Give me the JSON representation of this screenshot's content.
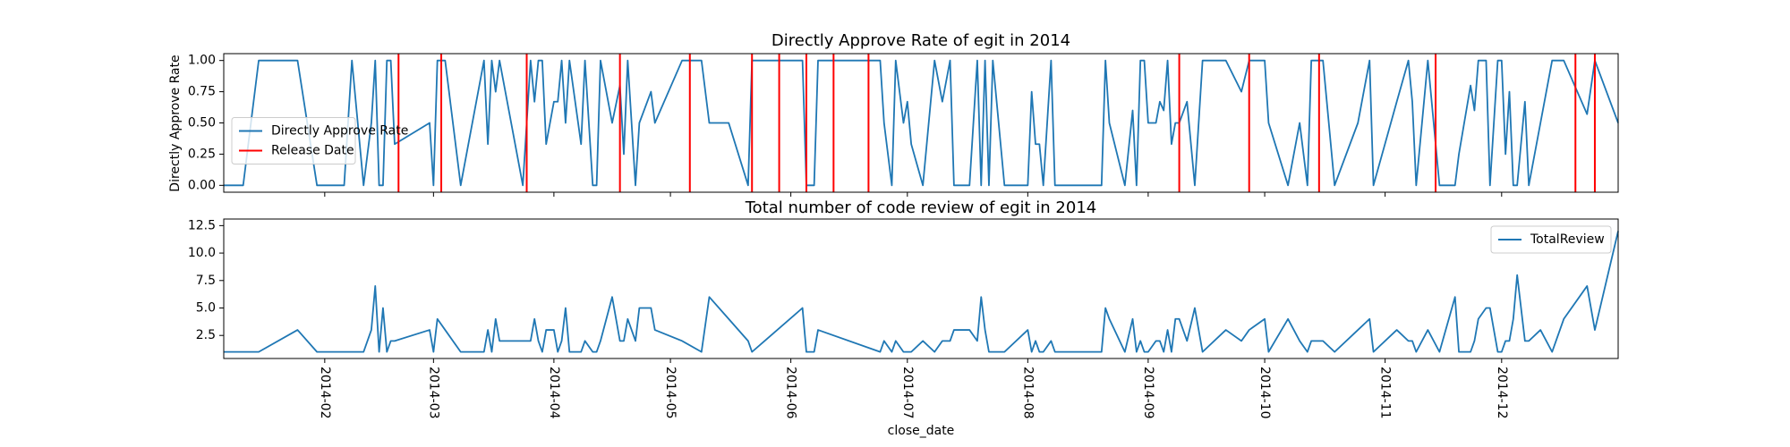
{
  "chart_data": [
    {
      "type": "line",
      "title": "Directly Approve Rate of egit in 2014",
      "ylabel": "Directly Approve Rate",
      "x": [
        5,
        10,
        14,
        24,
        29,
        36,
        38,
        41,
        43,
        44,
        45,
        46,
        47,
        48,
        49,
        58,
        59,
        60,
        62,
        66,
        72,
        73,
        74,
        75,
        76,
        82,
        84,
        85,
        86,
        87,
        88,
        90,
        91,
        92,
        93,
        94,
        97,
        98,
        100,
        101,
        102,
        105,
        107,
        108,
        109,
        111,
        112,
        115,
        116,
        123,
        128,
        130,
        135,
        140,
        141,
        154,
        155,
        157,
        158,
        174,
        175,
        177,
        178,
        180,
        181,
        182,
        185,
        188,
        190,
        192,
        193,
        197,
        199,
        200,
        201,
        202,
        203,
        206,
        212,
        213,
        214,
        215,
        216,
        218,
        219,
        231,
        232,
        233,
        237,
        239,
        240,
        241,
        242,
        243,
        245,
        246,
        247,
        248,
        249,
        250,
        251,
        253,
        255,
        257,
        263,
        267,
        269,
        273,
        274,
        279,
        282,
        284,
        285,
        288,
        291,
        297,
        300,
        301,
        307,
        310,
        311,
        312,
        315,
        318,
        322,
        323,
        326,
        327,
        328,
        330,
        331,
        333,
        334,
        335,
        336,
        337,
        338,
        340,
        341,
        344,
        347,
        350,
        356,
        358,
        364
      ],
      "series": [
        {
          "name": "Directly Approve Rate",
          "color": "#1f77b4",
          "values": [
            0,
            0,
            1,
            1,
            0,
            0,
            1,
            0,
            0.5,
            1,
            0,
            0,
            1,
            1,
            0.33,
            0.5,
            0,
            1,
            1,
            0,
            1,
            0.33,
            1,
            0.75,
            1,
            0,
            1,
            0.67,
            1,
            1,
            0.33,
            0.67,
            0.67,
            1,
            0.5,
            1,
            0.33,
            1,
            0,
            0,
            1,
            0.5,
            0.8,
            0.25,
            1,
            0,
            0.5,
            0.75,
            0.5,
            1,
            1,
            0.5,
            0.5,
            0,
            1,
            1,
            0,
            0,
            1,
            1,
            0.5,
            0,
            1,
            0.5,
            0.67,
            0.33,
            0,
            1,
            0.67,
            1,
            0,
            0,
            1,
            0,
            1,
            0,
            1,
            0,
            0,
            0.75,
            0.33,
            0.33,
            0,
            1,
            0,
            0,
            1,
            0.5,
            0,
            0.6,
            0,
            1,
            1,
            0.5,
            0.5,
            0.67,
            0.6,
            1,
            0.33,
            0.5,
            0.5,
            0.67,
            0,
            1,
            1,
            0.75,
            1,
            1,
            0.5,
            0,
            0.5,
            0,
            1,
            1,
            0,
            0.5,
            1,
            0,
            0.67,
            1,
            0.67,
            0,
            1,
            0,
            0,
            0.25,
            0.8,
            0.6,
            1,
            1,
            0,
            1,
            1,
            0.25,
            0.75,
            0,
            0,
            0.67,
            0,
            0.5,
            1,
            1,
            0.57,
            1,
            0.5
          ]
        }
      ],
      "release_dates": {
        "name": "Release Date",
        "color": "#ff0000",
        "x": [
          50,
          61,
          83,
          107,
          125,
          141,
          148,
          155,
          162,
          171,
          251,
          269,
          287,
          317,
          353,
          358
        ]
      },
      "xlim": [
        5,
        364
      ],
      "ylim": [
        -0.055,
        1.055
      ],
      "yticks": [
        {
          "value": 0,
          "label": "0.00"
        },
        {
          "value": 0.25,
          "label": "0.25"
        },
        {
          "value": 0.5,
          "label": "0.50"
        },
        {
          "value": 0.75,
          "label": "0.75"
        },
        {
          "value": 1,
          "label": "1.00"
        }
      ],
      "legend": "center left"
    },
    {
      "type": "line",
      "title": "Total number of code review of egit in 2014",
      "xlabel": "close_date",
      "x": [
        5,
        10,
        14,
        24,
        29,
        36,
        38,
        41,
        43,
        44,
        45,
        46,
        47,
        48,
        49,
        58,
        59,
        60,
        62,
        66,
        72,
        73,
        74,
        75,
        76,
        82,
        84,
        85,
        86,
        87,
        88,
        90,
        91,
        92,
        93,
        94,
        97,
        98,
        100,
        101,
        102,
        105,
        107,
        108,
        109,
        111,
        112,
        115,
        116,
        123,
        128,
        130,
        135,
        140,
        141,
        154,
        155,
        157,
        158,
        174,
        175,
        177,
        178,
        180,
        181,
        182,
        185,
        188,
        190,
        192,
        193,
        197,
        199,
        200,
        201,
        202,
        203,
        206,
        212,
        213,
        214,
        215,
        216,
        218,
        219,
        231,
        232,
        233,
        237,
        239,
        240,
        241,
        242,
        243,
        245,
        246,
        247,
        248,
        249,
        250,
        251,
        253,
        255,
        257,
        263,
        267,
        269,
        273,
        274,
        279,
        282,
        284,
        285,
        288,
        291,
        297,
        300,
        301,
        307,
        310,
        311,
        312,
        315,
        318,
        322,
        323,
        326,
        327,
        328,
        330,
        331,
        333,
        334,
        335,
        336,
        337,
        338,
        340,
        341,
        344,
        347,
        350,
        356,
        358,
        364
      ],
      "series": [
        {
          "name": "TotalReview",
          "color": "#1f77b4",
          "values": [
            1,
            1,
            1,
            3,
            1,
            1,
            1,
            1,
            3,
            7,
            1,
            5,
            1,
            2,
            2,
            3,
            1,
            4,
            3,
            1,
            1,
            3,
            1,
            4,
            2,
            2,
            2,
            4,
            2,
            1,
            3,
            3,
            1,
            2,
            5,
            1,
            1,
            2,
            1,
            1,
            2,
            6,
            2,
            2,
            4,
            2,
            5,
            5,
            3,
            2,
            1,
            6,
            4,
            2,
            1,
            5,
            1,
            1,
            3,
            1,
            2,
            1,
            2,
            1,
            1,
            1,
            2,
            1,
            2,
            2,
            3,
            3,
            2,
            6,
            3,
            1,
            1,
            1,
            3,
            1,
            2,
            1,
            1,
            2,
            1,
            1,
            5,
            4,
            1,
            4,
            1,
            2,
            1,
            1,
            2,
            2,
            1,
            3,
            1,
            4,
            4,
            2,
            5,
            1,
            3,
            2,
            3,
            4,
            1,
            4,
            2,
            1,
            2,
            2,
            1,
            3,
            4,
            1,
            3,
            2,
            2,
            1,
            3,
            1,
            6,
            1,
            1,
            2,
            4,
            5,
            5,
            1,
            1,
            2,
            2,
            4,
            8,
            2,
            2,
            3,
            1,
            4,
            7,
            3,
            12
          ]
        }
      ],
      "xlim": [
        5,
        364
      ],
      "ylim": [
        0.4,
        13.1
      ],
      "yticks": [
        2.5,
        {
          "value": 5,
          "label": "5.0"
        },
        7.5,
        {
          "value": 10,
          "label": "10.0"
        },
        12.5
      ],
      "xticks": [
        {
          "value": 31,
          "label": "2014-02"
        },
        {
          "value": 59,
          "label": "2014-03"
        },
        {
          "value": 90,
          "label": "2014-04"
        },
        {
          "value": 120,
          "label": "2014-05"
        },
        {
          "value": 151,
          "label": "2014-06"
        },
        {
          "value": 181,
          "label": "2014-07"
        },
        {
          "value": 212,
          "label": "2014-08"
        },
        {
          "value": 243,
          "label": "2014-09"
        },
        {
          "value": 273,
          "label": "2014-10"
        },
        {
          "value": 304,
          "label": "2014-11"
        },
        {
          "value": 334,
          "label": "2014-12"
        }
      ],
      "legend": "upper right"
    }
  ]
}
